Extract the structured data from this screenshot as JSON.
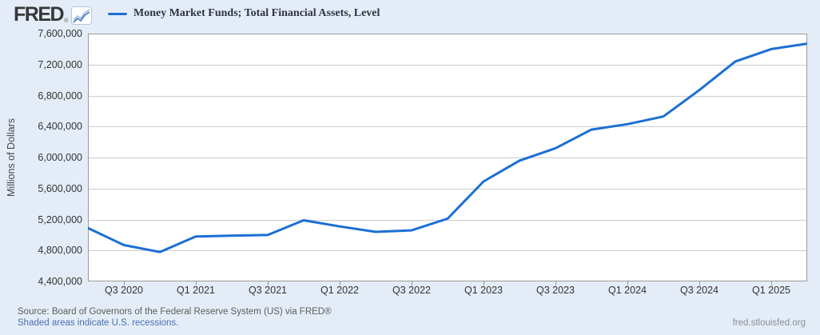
{
  "header": {
    "logo_text": "FRED",
    "registered_mark": "®"
  },
  "legend": {
    "label": "Money Market Funds; Total Financial Assets, Level",
    "swatch_color": "#1b6fd4"
  },
  "chart_data": {
    "type": "line",
    "title": "Money Market Funds; Total Financial Assets, Level",
    "ylabel": "Millions of Dollars",
    "ylim": [
      4400000,
      7600000
    ],
    "y_step": 400000,
    "grid": "horizontal",
    "legend_position": "top-left",
    "line_color": "#1b6fd4",
    "plot_bg": "#ffffff",
    "page_bg": "#e4edf7",
    "x": [
      "Q2 2020",
      "Q3 2020",
      "Q4 2020",
      "Q1 2021",
      "Q2 2021",
      "Q3 2021",
      "Q4 2021",
      "Q1 2022",
      "Q2 2022",
      "Q3 2022",
      "Q4 2022",
      "Q1 2023",
      "Q2 2023",
      "Q3 2023",
      "Q4 2023",
      "Q1 2024",
      "Q2 2024",
      "Q3 2024",
      "Q4 2024",
      "Q1 2025",
      "Q2 2025"
    ],
    "values": [
      5090000,
      4870000,
      4780000,
      4980000,
      4990000,
      5000000,
      5190000,
      5110000,
      5040000,
      5060000,
      5210000,
      5690000,
      5960000,
      6120000,
      6360000,
      6430000,
      6530000,
      6870000,
      7240000,
      7400000,
      7470000
    ],
    "x_tick_labels": [
      "Q3 2020",
      "Q1 2021",
      "Q3 2021",
      "Q1 2022",
      "Q3 2022",
      "Q1 2023",
      "Q3 2023",
      "Q1 2024",
      "Q3 2024",
      "Q1 2025"
    ],
    "y_tick_labels": [
      "7,600,000",
      "7,200,000",
      "6,800,000",
      "6,400,000",
      "6,000,000",
      "5,600,000",
      "5,200,000",
      "4,800,000",
      "4,400,000"
    ]
  },
  "footer": {
    "source": "Source: Board of Governors of the Federal Reserve System (US) via FRED®",
    "recessions_note": "Shaded areas indicate U.S. recessions.",
    "website": "fred.stlouisfed.org"
  }
}
